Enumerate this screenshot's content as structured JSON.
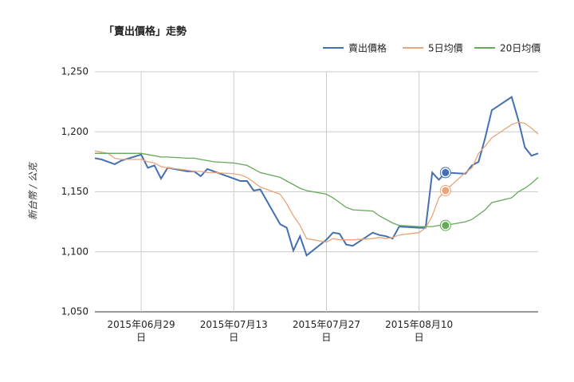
{
  "chart_data": {
    "type": "line",
    "title": "「賣出價格」走勢",
    "y_label": "新台幣 / 公克",
    "x": [
      "2015-06-22",
      "2015-06-23",
      "2015-06-24",
      "2015-06-25",
      "2015-06-26",
      "2015-06-29",
      "2015-06-30",
      "2015-07-01",
      "2015-07-02",
      "2015-07-03",
      "2015-07-06",
      "2015-07-07",
      "2015-07-08",
      "2015-07-09",
      "2015-07-10",
      "2015-07-13",
      "2015-07-14",
      "2015-07-15",
      "2015-07-16",
      "2015-07-17",
      "2015-07-20",
      "2015-07-21",
      "2015-07-22",
      "2015-07-23",
      "2015-07-24",
      "2015-07-27",
      "2015-07-28",
      "2015-07-29",
      "2015-07-30",
      "2015-07-31",
      "2015-08-03",
      "2015-08-04",
      "2015-08-05",
      "2015-08-06",
      "2015-08-07",
      "2015-08-10",
      "2015-08-11",
      "2015-08-12",
      "2015-08-13",
      "2015-08-14",
      "2015-08-17",
      "2015-08-18",
      "2015-08-19",
      "2015-08-20",
      "2015-08-21",
      "2015-08-24",
      "2015-08-25",
      "2015-08-26",
      "2015-08-27",
      "2015-08-28"
    ],
    "series": [
      {
        "name": "賣出價格",
        "color": "#4470b0",
        "values": [
          1178,
          1177,
          1175,
          1173,
          1176,
          1181,
          1170,
          1172,
          1161,
          1170,
          1167,
          1167,
          1163,
          1169,
          1167,
          1161,
          1159,
          1159,
          1151,
          1152,
          1123,
          1120,
          1101,
          1113,
          1097,
          1110,
          1116,
          1115,
          1106,
          1105,
          1116,
          1114,
          1113,
          1111,
          1121,
          1120,
          1120,
          1166,
          1160,
          1166,
          1165,
          1172,
          1175,
          1195,
          1218,
          1229,
          1210,
          1187,
          1180,
          1182
        ]
      },
      {
        "name": "5日均價",
        "color": "#eaa57a",
        "values": [
          1184,
          1183,
          1182,
          1178,
          1177,
          1177,
          1175,
          1174,
          1171,
          1170,
          1168,
          1167,
          1167,
          1166,
          1166,
          1165,
          1164,
          1162,
          1158,
          1154,
          1148,
          1140,
          1130,
          1122,
          1111,
          1108,
          1111,
          1110,
          1110,
          1110,
          1111,
          1112,
          1111,
          1112,
          1114,
          1116,
          1120,
          1130,
          1145,
          1151,
          1166,
          1170,
          1182,
          1188,
          1195,
          1206,
          1208,
          1207,
          1203,
          1198
        ]
      },
      {
        "name": "20日均價",
        "color": "#66a95a",
        "values": [
          1182,
          1182,
          1182,
          1182,
          1182,
          1182,
          1181,
          1180,
          1179,
          1179,
          1178,
          1178,
          1177,
          1176,
          1175,
          1174,
          1173,
          1172,
          1169,
          1166,
          1162,
          1159,
          1156,
          1153,
          1151,
          1148,
          1145,
          1141,
          1137,
          1135,
          1134,
          1130,
          1127,
          1124,
          1122,
          1121,
          1121,
          1121,
          1122,
          1122,
          1125,
          1127,
          1131,
          1135,
          1141,
          1145,
          1150,
          1153,
          1157,
          1162
        ]
      }
    ],
    "highlight_index": 39,
    "xlim": [
      "2015-06-22",
      "2015-08-28"
    ],
    "xticks": [
      {
        "value": "2015-06-29",
        "label": "2015年06月29日"
      },
      {
        "value": "2015-07-13",
        "label": "2015年07月13日"
      },
      {
        "value": "2015-07-27",
        "label": "2015年07月27日"
      },
      {
        "value": "2015-08-10",
        "label": "2015年08月10日"
      }
    ],
    "ylim": [
      1050,
      1250
    ],
    "yticks": [
      {
        "value": 1050,
        "label": "1,050"
      },
      {
        "value": 1100,
        "label": "1,100"
      },
      {
        "value": 1150,
        "label": "1,150"
      },
      {
        "value": 1200,
        "label": "1,200"
      },
      {
        "value": 1250,
        "label": "1,250"
      }
    ],
    "grid": true,
    "legend": "top-right"
  }
}
